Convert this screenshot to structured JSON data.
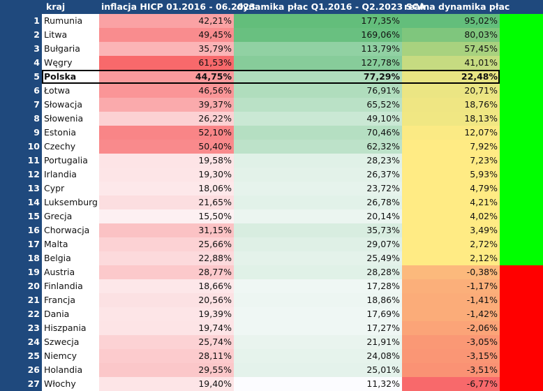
{
  "headers": {
    "country": "kraj",
    "inflation": "inflacja HICP 01.2016 - 06.2023",
    "wages": "dynamika płac Q1.2016 - Q2.2023 SCA",
    "real": "realna dynamika płac"
  },
  "colors": {
    "header_bg": "#1f497d",
    "positive_flag": "#00ff00",
    "negative_flag": "#ff0000"
  },
  "rows": [
    {
      "n": "1",
      "country": "Rumunia",
      "inflation": "42,21%",
      "wages": "177,35%",
      "real": "95,02%"
    },
    {
      "n": "2",
      "country": "Litwa",
      "inflation": "49,45%",
      "wages": "169,06%",
      "real": "80,03%"
    },
    {
      "n": "3",
      "country": "Bułgaria",
      "inflation": "35,79%",
      "wages": "113,79%",
      "real": "57,45%"
    },
    {
      "n": "4",
      "country": "Węgry",
      "inflation": "61,53%",
      "wages": "127,78%",
      "real": "41,01%"
    },
    {
      "n": "5",
      "country": "Polska",
      "inflation": "44,75%",
      "wages": "77,29%",
      "real": "22,48%"
    },
    {
      "n": "6",
      "country": "Łotwa",
      "inflation": "46,56%",
      "wages": "76,91%",
      "real": "20,71%"
    },
    {
      "n": "7",
      "country": "Słowacja",
      "inflation": "39,37%",
      "wages": "65,52%",
      "real": "18,76%"
    },
    {
      "n": "8",
      "country": "Słowenia",
      "inflation": "26,22%",
      "wages": "49,10%",
      "real": "18,13%"
    },
    {
      "n": "9",
      "country": "Estonia",
      "inflation": "52,10%",
      "wages": "70,46%",
      "real": "12,07%"
    },
    {
      "n": "10",
      "country": "Czechy",
      "inflation": "50,40%",
      "wages": "62,32%",
      "real": "7,92%"
    },
    {
      "n": "11",
      "country": "Portugalia",
      "inflation": "19,58%",
      "wages": "28,23%",
      "real": "7,23%"
    },
    {
      "n": "12",
      "country": "Irlandia",
      "inflation": "19,30%",
      "wages": "26,37%",
      "real": "5,93%"
    },
    {
      "n": "13",
      "country": "Cypr",
      "inflation": "18,06%",
      "wages": "23,72%",
      "real": "4,79%"
    },
    {
      "n": "14",
      "country": "Luksemburg",
      "inflation": "21,65%",
      "wages": "26,78%",
      "real": "4,21%"
    },
    {
      "n": "15",
      "country": "Grecja",
      "inflation": "15,50%",
      "wages": "20,14%",
      "real": "4,02%"
    },
    {
      "n": "16",
      "country": "Chorwacja",
      "inflation": "31,15%",
      "wages": "35,73%",
      "real": "3,49%"
    },
    {
      "n": "17",
      "country": "Malta",
      "inflation": "25,66%",
      "wages": "29,07%",
      "real": "2,72%"
    },
    {
      "n": "18",
      "country": "Belgia",
      "inflation": "22,88%",
      "wages": "25,49%",
      "real": "2,12%"
    },
    {
      "n": "19",
      "country": "Austria",
      "inflation": "28,77%",
      "wages": "28,28%",
      "real": "-0,38%"
    },
    {
      "n": "20",
      "country": "Finlandia",
      "inflation": "18,66%",
      "wages": "17,28%",
      "real": "-1,17%"
    },
    {
      "n": "21",
      "country": "Francja",
      "inflation": "20,56%",
      "wages": "18,86%",
      "real": "-1,41%"
    },
    {
      "n": "22",
      "country": "Dania",
      "inflation": "19,39%",
      "wages": "17,69%",
      "real": "-1,42%"
    },
    {
      "n": "23",
      "country": "Hiszpania",
      "inflation": "19,74%",
      "wages": "17,27%",
      "real": "-2,06%"
    },
    {
      "n": "24",
      "country": "Szwecja",
      "inflation": "25,74%",
      "wages": "21,91%",
      "real": "-3,05%"
    },
    {
      "n": "25",
      "country": "Niemcy",
      "inflation": "28,11%",
      "wages": "24,08%",
      "real": "-3,15%"
    },
    {
      "n": "26",
      "country": "Holandia",
      "inflation": "29,55%",
      "wages": "25,01%",
      "real": "-3,51%"
    },
    {
      "n": "27",
      "country": "Włochy",
      "inflation": "19,40%",
      "wages": "11,32%",
      "real": "-6,77%"
    }
  ]
}
